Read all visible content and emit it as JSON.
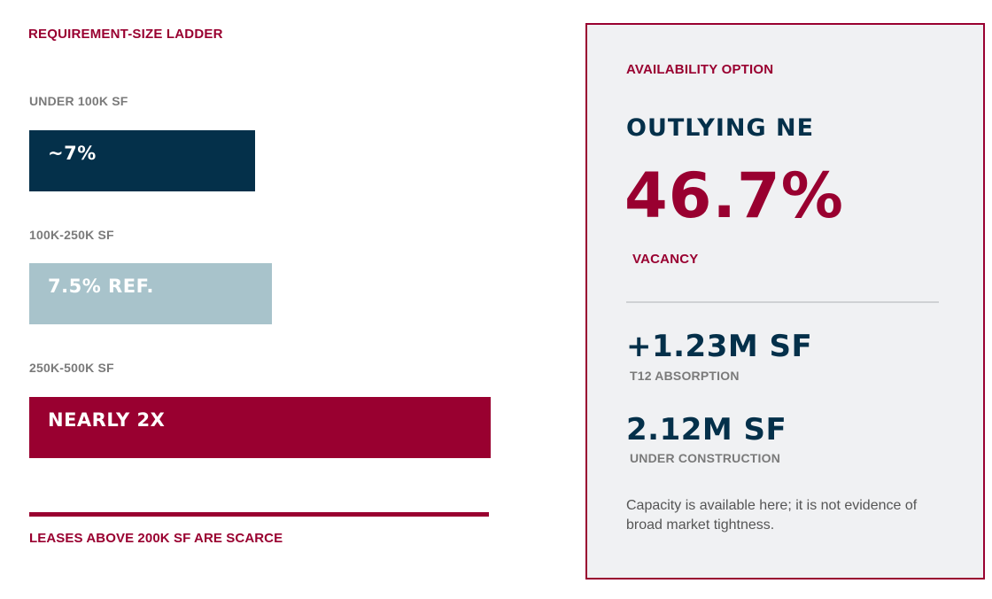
{
  "ladder": {
    "title": "REQUIREMENT-SIZE LADDER",
    "tiers": [
      {
        "label": "UNDER 100K SF",
        "value_text": "~7%",
        "color": "#04304a"
      },
      {
        "label": "100K-250K SF",
        "value_text": "7.5% REF.",
        "color": "#a8c3cb"
      },
      {
        "label": "250K-500K SF",
        "value_text": "NEARLY 2X",
        "color": "#990030"
      }
    ],
    "footer_note": "LEASES ABOVE 200K SF ARE SCARCE"
  },
  "panel": {
    "kicker": "AVAILABILITY OPTION",
    "market": "OUTLYING NE",
    "vacancy_value": "46.7%",
    "vacancy_label": "VACANCY",
    "stats": [
      {
        "value": "+1.23M SF",
        "label": "T12 ABSORPTION"
      },
      {
        "value": "2.12M SF",
        "label": "UNDER CONSTRUCTION"
      }
    ],
    "note": "Capacity is available here; it is not evidence of broad market tightness."
  },
  "colors": {
    "accent_red": "#990030",
    "navy": "#04304a",
    "light_blue": "#a8c3cb",
    "panel_bg": "#f0f1f3",
    "muted_gray": "#7a7a7a"
  }
}
